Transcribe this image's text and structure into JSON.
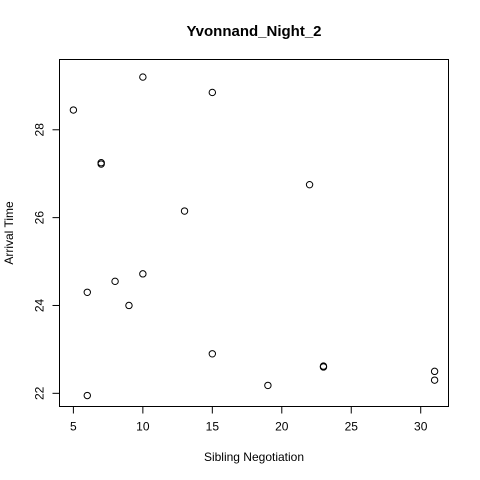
{
  "chart_data": {
    "type": "scatter",
    "title": "Yvonnand_Night_2",
    "xlabel": "Sibling Negotiation",
    "ylabel": "Arrival Time",
    "xlim": [
      4,
      32
    ],
    "ylim": [
      21.7,
      29.6
    ],
    "xticks": [
      "5",
      "10",
      "15",
      "20",
      "25",
      "30"
    ],
    "yticks": [
      "22",
      "24",
      "26",
      "28"
    ],
    "grid": false,
    "points": [
      {
        "x": 5,
        "y": 28.45
      },
      {
        "x": 6,
        "y": 24.3
      },
      {
        "x": 6,
        "y": 21.95
      },
      {
        "x": 7,
        "y": 27.25
      },
      {
        "x": 7,
        "y": 27.22
      },
      {
        "x": 8,
        "y": 24.55
      },
      {
        "x": 9,
        "y": 24.0
      },
      {
        "x": 10,
        "y": 29.2
      },
      {
        "x": 10,
        "y": 24.72
      },
      {
        "x": 13,
        "y": 26.15
      },
      {
        "x": 15,
        "y": 28.85
      },
      {
        "x": 15,
        "y": 22.9
      },
      {
        "x": 19,
        "y": 22.18
      },
      {
        "x": 22,
        "y": 26.75
      },
      {
        "x": 23,
        "y": 22.62
      },
      {
        "x": 23,
        "y": 22.6
      },
      {
        "x": 31,
        "y": 22.5
      },
      {
        "x": 31,
        "y": 22.3
      }
    ]
  }
}
